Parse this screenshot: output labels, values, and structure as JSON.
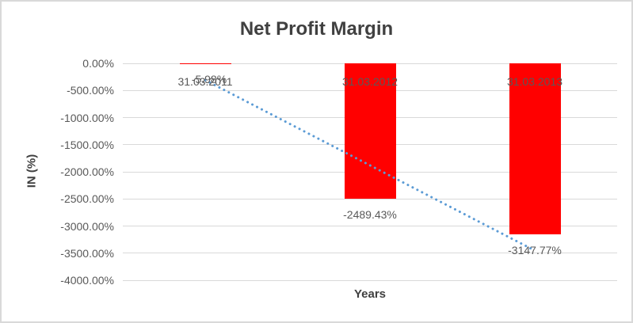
{
  "chart_data": {
    "type": "bar",
    "title": "Net Profit Margin",
    "xlabel": "Years",
    "ylabel": "IN (%)",
    "categories": [
      "31.03.2011",
      "31.03.2012",
      "31.03.2013"
    ],
    "series": [
      {
        "name": "Net Profit Margin",
        "values": [
          -5.98,
          -2489.43,
          -3147.77
        ]
      }
    ],
    "data_labels": [
      "-5.98%",
      "-2489.43%",
      "-3147.77%"
    ],
    "ylim": [
      -4000,
      0
    ],
    "ytick_step": 500,
    "ytick_labels": [
      "0.00%",
      "-500.00%",
      "-1000.00%",
      "-1500.00%",
      "-2000.00%",
      "-2500.00%",
      "-3000.00%",
      "-3500.00%",
      "-4000.00%"
    ],
    "grid": true,
    "legend": "none",
    "trendline": {
      "type": "linear",
      "style": "dotted",
      "start_value": -310.2,
      "end_value": -3452.0
    },
    "colors": {
      "bar": "#ff0000",
      "trendline": "#5b9bd5",
      "gridline": "#d9d9d9",
      "tick_text": "#595959",
      "title_text": "#404040",
      "border": "#d9d9d9",
      "background": "#ffffff"
    }
  }
}
